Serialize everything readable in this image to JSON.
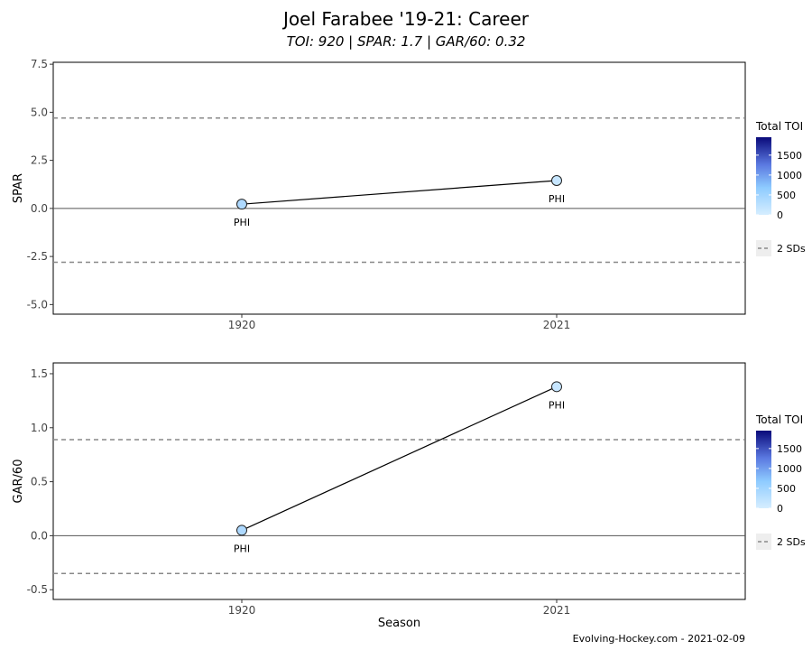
{
  "title": "Joel Farabee '19-21: Career",
  "subtitle": "TOI: 920 | SPAR: 1.7 | GAR/60: 0.32",
  "caption": "Evolving-Hockey.com - 2021-02-09",
  "chart_data": [
    {
      "type": "line",
      "ylabel": "SPAR",
      "xlabel": "",
      "categories": [
        "1920",
        "2021"
      ],
      "ylim": [
        -5.5,
        7.6
      ],
      "yticks": [
        "7.5",
        "5.0",
        "2.5",
        "0.0",
        "-2.5",
        "-5.0"
      ],
      "ytick_values": [
        7.5,
        5.0,
        2.5,
        0.0,
        -2.5,
        -5.0
      ],
      "reference_lines": {
        "zero": 0.0,
        "sd_upper": 4.7,
        "sd_lower": -2.8
      },
      "points": [
        {
          "season": "1920",
          "value": 0.22,
          "team": "PHI",
          "toi": 400
        },
        {
          "season": "2021",
          "value": 1.45,
          "team": "PHI",
          "toi": 100
        }
      ],
      "legend": {
        "title": "Total TOI",
        "ticks": [
          "1500",
          "1000",
          "500",
          "0"
        ],
        "tick_values": [
          1500,
          1000,
          500,
          0
        ],
        "max": 1950,
        "sd_label": "2 SDs"
      },
      "colors": {
        "low": "#cfeaff",
        "mid": "#8ec8ff",
        "high": "#0a0a8a",
        "sd_line": "#888888",
        "zero_line": "#555555"
      }
    },
    {
      "type": "line",
      "ylabel": "GAR/60",
      "xlabel": "Season",
      "categories": [
        "1920",
        "2021"
      ],
      "ylim": [
        -0.59,
        1.6
      ],
      "yticks": [
        "1.5",
        "1.0",
        "0.5",
        "0.0",
        "-0.5"
      ],
      "ytick_values": [
        1.5,
        1.0,
        0.5,
        0.0,
        -0.5
      ],
      "reference_lines": {
        "zero": 0.0,
        "sd_upper": 0.89,
        "sd_lower": -0.35
      },
      "points": [
        {
          "season": "1920",
          "value": 0.05,
          "team": "PHI",
          "toi": 400
        },
        {
          "season": "2021",
          "value": 1.38,
          "team": "PHI",
          "toi": 100
        }
      ],
      "legend": {
        "title": "Total TOI",
        "ticks": [
          "1500",
          "1000",
          "500",
          "0"
        ],
        "tick_values": [
          1500,
          1000,
          500,
          0
        ],
        "max": 1950,
        "sd_label": "2 SDs"
      },
      "colors": {
        "low": "#cfeaff",
        "mid": "#8ec8ff",
        "high": "#0a0a8a",
        "sd_line": "#888888",
        "zero_line": "#555555"
      }
    }
  ]
}
